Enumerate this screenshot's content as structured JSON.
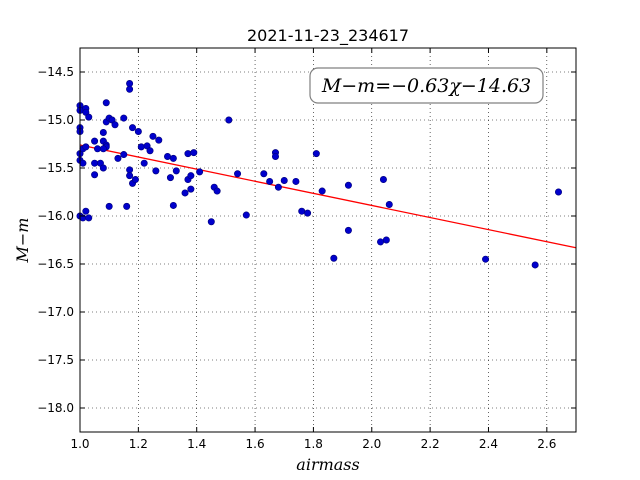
{
  "chart_data": {
    "type": "scatter",
    "title": "2021-11-23_234617",
    "xlabel": "airmass",
    "ylabel": "M−m",
    "xlim": [
      1.0,
      2.7
    ],
    "ylim": [
      -18.25,
      -14.25
    ],
    "y_inverted": true,
    "grid": true,
    "x_ticks": [
      1.0,
      1.2,
      1.4,
      1.6,
      1.8,
      2.0,
      2.2,
      2.4,
      2.6
    ],
    "x_tick_labels": [
      "1.0",
      "1.2",
      "1.4",
      "1.6",
      "1.8",
      "2.0",
      "2.2",
      "2.4",
      "2.6"
    ],
    "y_ticks": [
      -14.5,
      -15.0,
      -15.5,
      -16.0,
      -16.5,
      -17.0,
      -17.5,
      -18.0
    ],
    "y_tick_labels": [
      "−14.5",
      "−15.0",
      "−15.5",
      "−16.0",
      "−16.5",
      "−17.0",
      "−17.5",
      "−18.0"
    ],
    "annotation": "M−m=−0.63χ−14.63",
    "fit": {
      "slope": -0.63,
      "intercept": -14.63,
      "color": "#ff0000"
    },
    "marker_color": "#0000cc",
    "points": [
      [
        1.0,
        -14.85
      ],
      [
        1.0,
        -14.9
      ],
      [
        1.0,
        -15.08
      ],
      [
        1.0,
        -15.12
      ],
      [
        1.0,
        -15.35
      ],
      [
        1.0,
        -15.42
      ],
      [
        1.0,
        -16.0
      ],
      [
        1.02,
        -14.88
      ],
      [
        1.02,
        -14.92
      ],
      [
        1.03,
        -14.97
      ],
      [
        1.01,
        -15.3
      ],
      [
        1.02,
        -15.28
      ],
      [
        1.01,
        -15.45
      ],
      [
        1.02,
        -15.95
      ],
      [
        1.01,
        -16.02
      ],
      [
        1.03,
        -16.02
      ],
      [
        1.05,
        -15.22
      ],
      [
        1.06,
        -15.3
      ],
      [
        1.05,
        -15.45
      ],
      [
        1.07,
        -15.45
      ],
      [
        1.08,
        -15.5
      ],
      [
        1.05,
        -15.57
      ],
      [
        1.08,
        -15.13
      ],
      [
        1.08,
        -15.22
      ],
      [
        1.09,
        -15.26
      ],
      [
        1.09,
        -15.28
      ],
      [
        1.08,
        -15.3
      ],
      [
        1.09,
        -14.82
      ],
      [
        1.09,
        -15.02
      ],
      [
        1.1,
        -14.98
      ],
      [
        1.11,
        -15.0
      ],
      [
        1.12,
        -15.05
      ],
      [
        1.1,
        -15.9
      ],
      [
        1.13,
        -15.4
      ],
      [
        1.15,
        -15.36
      ],
      [
        1.15,
        -14.98
      ],
      [
        1.16,
        -15.9
      ],
      [
        1.17,
        -14.62
      ],
      [
        1.17,
        -14.68
      ],
      [
        1.17,
        -15.52
      ],
      [
        1.17,
        -15.58
      ],
      [
        1.18,
        -15.66
      ],
      [
        1.19,
        -15.62
      ],
      [
        1.18,
        -15.08
      ],
      [
        1.2,
        -15.12
      ],
      [
        1.21,
        -15.28
      ],
      [
        1.22,
        -15.45
      ],
      [
        1.23,
        -15.27
      ],
      [
        1.24,
        -15.32
      ],
      [
        1.25,
        -15.17
      ],
      [
        1.26,
        -15.53
      ],
      [
        1.27,
        -15.21
      ],
      [
        1.3,
        -15.38
      ],
      [
        1.31,
        -15.6
      ],
      [
        1.32,
        -15.89
      ],
      [
        1.32,
        -15.4
      ],
      [
        1.33,
        -15.53
      ],
      [
        1.36,
        -15.76
      ],
      [
        1.37,
        -15.62
      ],
      [
        1.37,
        -15.35
      ],
      [
        1.38,
        -15.58
      ],
      [
        1.38,
        -15.72
      ],
      [
        1.39,
        -15.34
      ],
      [
        1.41,
        -15.54
      ],
      [
        1.45,
        -16.06
      ],
      [
        1.46,
        -15.7
      ],
      [
        1.47,
        -15.74
      ],
      [
        1.51,
        -15.0
      ],
      [
        1.54,
        -15.56
      ],
      [
        1.57,
        -15.99
      ],
      [
        1.63,
        -15.56
      ],
      [
        1.65,
        -15.64
      ],
      [
        1.67,
        -15.34
      ],
      [
        1.67,
        -15.38
      ],
      [
        1.68,
        -15.7
      ],
      [
        1.7,
        -15.63
      ],
      [
        1.74,
        -15.64
      ],
      [
        1.76,
        -15.95
      ],
      [
        1.78,
        -15.97
      ],
      [
        1.81,
        -15.35
      ],
      [
        1.83,
        -15.74
      ],
      [
        1.87,
        -16.44
      ],
      [
        1.92,
        -15.68
      ],
      [
        1.92,
        -16.15
      ],
      [
        2.03,
        -16.27
      ],
      [
        2.04,
        -15.62
      ],
      [
        2.05,
        -16.25
      ],
      [
        2.06,
        -15.88
      ],
      [
        2.39,
        -16.45
      ],
      [
        2.56,
        -16.51
      ],
      [
        2.64,
        -15.75
      ]
    ]
  }
}
